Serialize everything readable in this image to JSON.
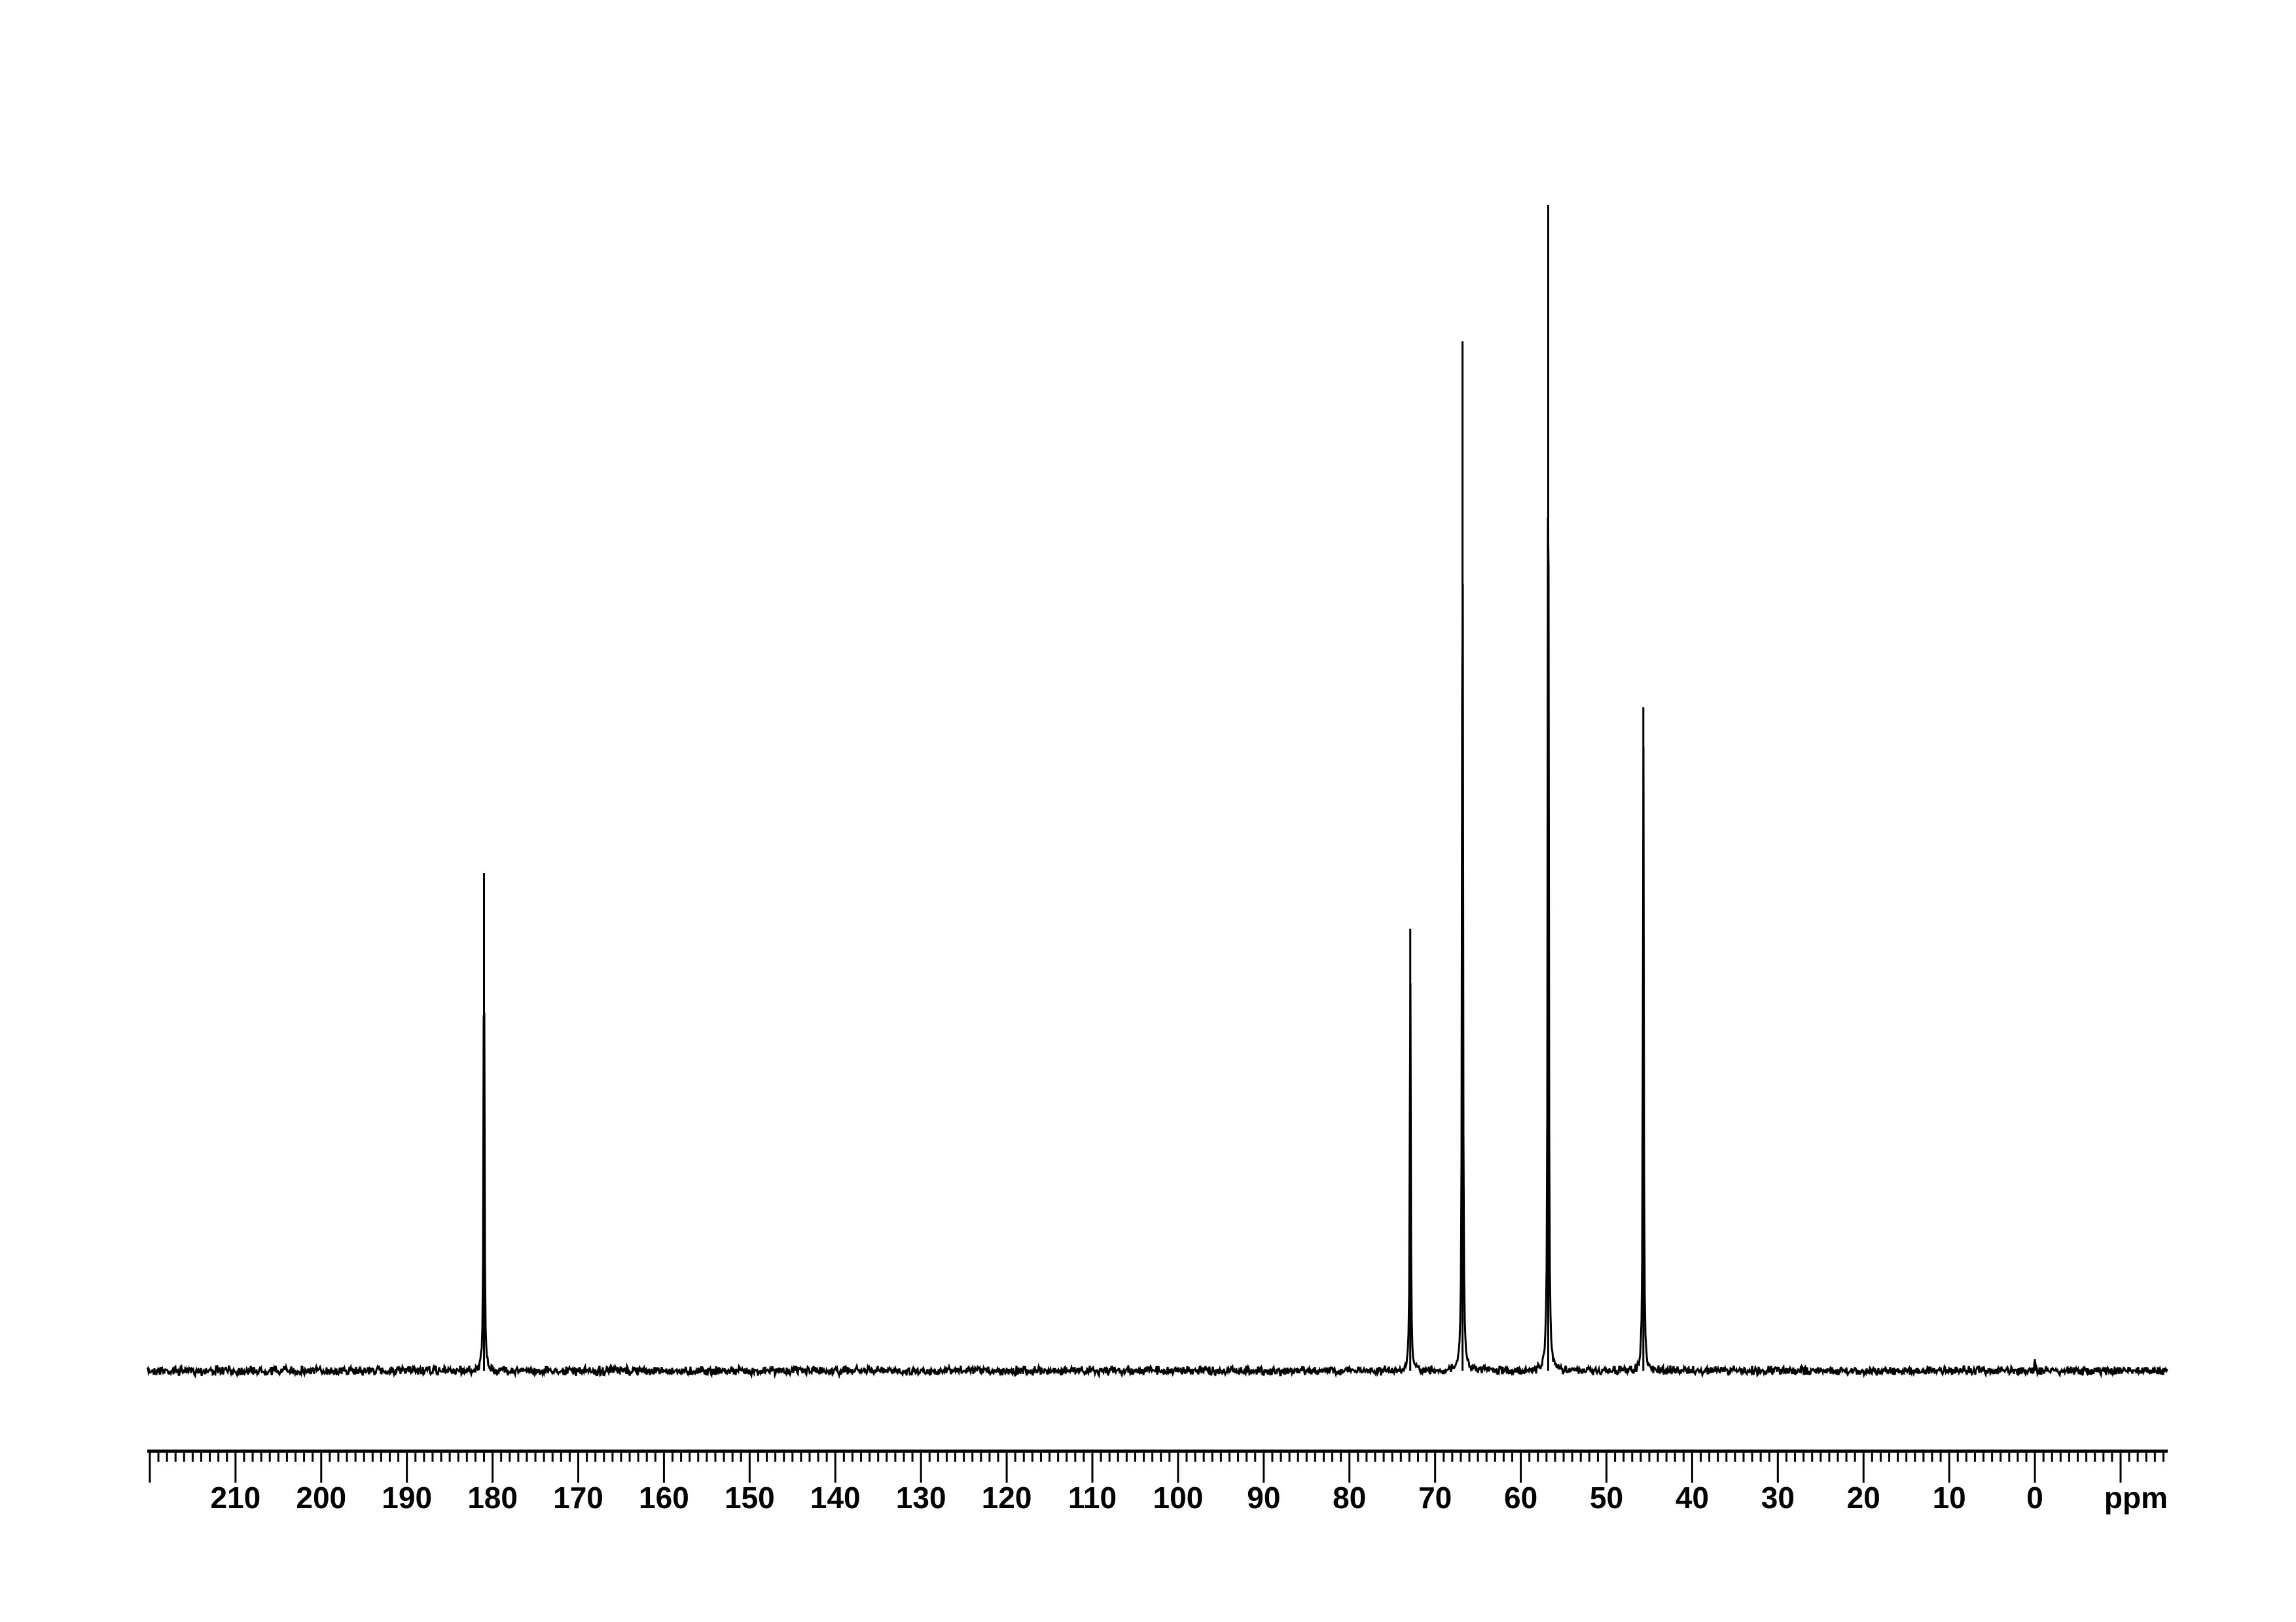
{
  "chart_data": {
    "type": "line",
    "title": "",
    "xlabel": "ppm",
    "ylabel": "",
    "xlim": [
      220.3,
      -15.5
    ],
    "x_reversed": true,
    "grid": false,
    "x_ticks": [
      210,
      200,
      190,
      180,
      170,
      160,
      150,
      140,
      130,
      120,
      110,
      100,
      90,
      80,
      70,
      60,
      50,
      40,
      30,
      20,
      10,
      0
    ],
    "minor_tick_step": 1,
    "peaks": [
      {
        "ppm": 181.0,
        "relative_intensity": 0.427
      },
      {
        "ppm": 72.9,
        "relative_intensity": 0.379
      },
      {
        "ppm": 66.8,
        "relative_intensity": 0.883
      },
      {
        "ppm": 56.8,
        "relative_intensity": 1.0
      },
      {
        "ppm": 45.7,
        "relative_intensity": 0.569
      },
      {
        "ppm": 0.0,
        "relative_intensity": 0.01
      }
    ],
    "line_color": "#000000"
  }
}
